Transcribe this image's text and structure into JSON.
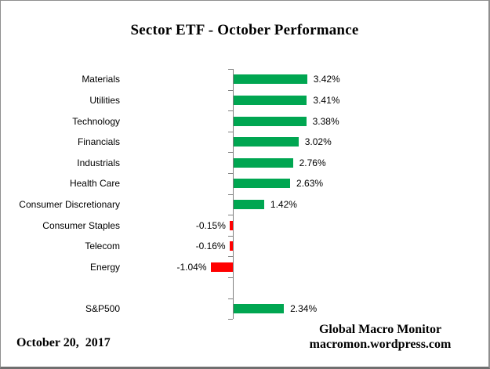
{
  "title": "Sector ETF - October Performance",
  "footer": {
    "date": "October 20,  2017",
    "credit_line1": "Global Macro Monitor",
    "credit_line2": "macromon.wordpress.com"
  },
  "chart_data": {
    "type": "bar",
    "orientation": "horizontal",
    "title": "Sector ETF - October Performance",
    "categories": [
      "Materials",
      "Utilities",
      "Technology",
      "Financials",
      "Industrials",
      "Health Care",
      "Consumer Discretionary",
      "Consumer Staples",
      "Telecom",
      "Energy",
      "",
      "S&P500"
    ],
    "values": [
      3.42,
      3.41,
      3.38,
      3.02,
      2.76,
      2.63,
      1.42,
      -0.15,
      -0.16,
      -1.04,
      null,
      2.34
    ],
    "data_labels": [
      "3.42%",
      "3.41%",
      "3.38%",
      "3.02%",
      "2.76%",
      "2.63%",
      "1.42%",
      "-0.15%",
      "-0.16%",
      "-1.04%",
      "",
      "2.34%"
    ],
    "xlabel": "",
    "ylabel": "",
    "baseline_value": 0,
    "grid": false,
    "legend": false,
    "value_axis_labels_visible": false,
    "positive_color": "#00A651",
    "negative_color": "#FF0000",
    "axis_color": "#808080",
    "label_color": "#000000"
  }
}
